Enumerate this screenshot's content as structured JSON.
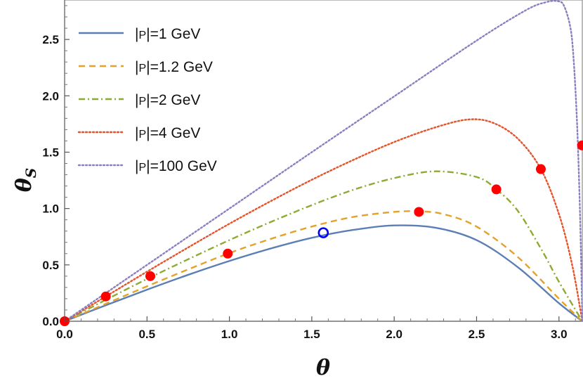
{
  "chart_data": {
    "type": "line",
    "title": "",
    "xlabel": "θ",
    "ylabel": "θ",
    "ylabel_sub": "S",
    "xlim": [
      0,
      3.14159
    ],
    "ylim": [
      0,
      2.85
    ],
    "xticks": [
      "0.0",
      "0.5",
      "1.0",
      "1.5",
      "2.0",
      "2.5",
      "3.0"
    ],
    "yticks": [
      "0.0",
      "0.5",
      "1.0",
      "1.5",
      "2.0",
      "2.5"
    ],
    "legend_position": "top-left",
    "series": [
      {
        "name": "|P|=1 GeV",
        "legend_prefix": "|",
        "legend_p": "P",
        "legend_suffix": "|=1 GeV",
        "color": "#5b7fb5",
        "style": "solid",
        "x": [
          0,
          0.25,
          0.5,
          0.75,
          1.0,
          1.25,
          1.5,
          1.75,
          2.0,
          2.25,
          2.5,
          2.75,
          3.0,
          3.1416
        ],
        "y": [
          0,
          0.142,
          0.28,
          0.412,
          0.535,
          0.645,
          0.74,
          0.81,
          0.85,
          0.83,
          0.72,
          0.48,
          0.16,
          0
        ]
      },
      {
        "name": "|P|=1.2 GeV",
        "legend_prefix": "|",
        "legend_p": "P",
        "legend_suffix": "|=1.2 GeV",
        "color": "#e5a12a",
        "style": "dashed",
        "x": [
          0,
          0.25,
          0.5,
          0.75,
          1.0,
          1.25,
          1.5,
          1.75,
          2.0,
          2.15,
          2.3,
          2.5,
          2.75,
          3.0,
          3.1416
        ],
        "y": [
          0,
          0.155,
          0.31,
          0.46,
          0.605,
          0.73,
          0.84,
          0.925,
          0.97,
          0.975,
          0.95,
          0.84,
          0.57,
          0.2,
          0
        ]
      },
      {
        "name": "|P|=2 GeV",
        "legend_prefix": "|",
        "legend_p": "P",
        "legend_suffix": "|=2 GeV",
        "color": "#8dab32",
        "style": "dashdot",
        "x": [
          0,
          0.25,
          0.5,
          0.75,
          1.0,
          1.25,
          1.5,
          1.75,
          2.0,
          2.25,
          2.5,
          2.62,
          2.75,
          2.9,
          3.0,
          3.1416
        ],
        "y": [
          0,
          0.19,
          0.375,
          0.55,
          0.72,
          0.88,
          1.03,
          1.165,
          1.27,
          1.33,
          1.28,
          1.17,
          0.98,
          0.62,
          0.35,
          0
        ]
      },
      {
        "name": "|P|=4 GeV",
        "legend_prefix": "|",
        "legend_p": "P",
        "legend_suffix": "|=4 GeV",
        "color": "#e5532a",
        "style": "dotted",
        "x": [
          0,
          0.25,
          0.5,
          0.75,
          1.0,
          1.25,
          1.5,
          1.75,
          2.0,
          2.25,
          2.45,
          2.6,
          2.75,
          2.89,
          3.0,
          3.08,
          3.1416
        ],
        "y": [
          0,
          0.22,
          0.44,
          0.655,
          0.865,
          1.065,
          1.255,
          1.43,
          1.59,
          1.72,
          1.79,
          1.76,
          1.62,
          1.35,
          0.95,
          0.5,
          0
        ]
      },
      {
        "name": "|P|=100 GeV",
        "legend_prefix": "|",
        "legend_p": "P",
        "legend_suffix": "|=100 GeV",
        "color": "#8a80c0",
        "style": "dotted",
        "x": [
          0,
          0.5,
          1.0,
          1.5,
          2.0,
          2.5,
          2.8,
          2.92,
          2.99,
          3.03,
          3.07,
          3.09,
          3.11,
          3.125,
          3.135,
          3.1416
        ],
        "y": [
          0,
          0.5,
          1.0,
          1.5,
          1.995,
          2.49,
          2.76,
          2.83,
          2.84,
          2.8,
          2.6,
          2.3,
          1.75,
          1.1,
          0.5,
          0
        ]
      }
    ],
    "markers_filled": {
      "color": "#ff0000",
      "points": [
        [
          0.0,
          0.0
        ],
        [
          0.25,
          0.22
        ],
        [
          0.52,
          0.4
        ],
        [
          0.99,
          0.6
        ],
        [
          2.15,
          0.97
        ],
        [
          2.62,
          1.17
        ],
        [
          2.89,
          1.35
        ],
        [
          3.14,
          1.56
        ]
      ]
    },
    "markers_open": {
      "color": "#0000ff",
      "points": [
        [
          1.57,
          0.785
        ]
      ]
    }
  }
}
